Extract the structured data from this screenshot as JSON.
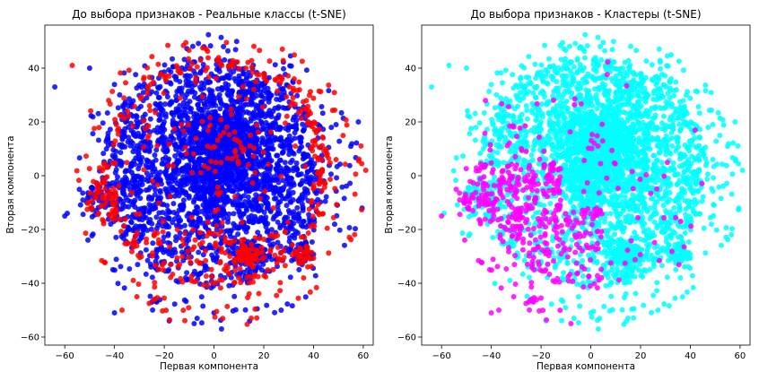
{
  "chart_data": [
    {
      "type": "scatter",
      "title": "До выбора признаков - Реальные классы (t-SNE)",
      "xlabel": "Первая компонента",
      "ylabel": "Вторая компонента",
      "xlim": [
        -68,
        64
      ],
      "ylim": [
        -63,
        56
      ],
      "xticks": [
        -60,
        -40,
        -20,
        0,
        20,
        40,
        60
      ],
      "yticks": [
        -60,
        -40,
        -20,
        0,
        20,
        40
      ],
      "grid": false,
      "colors": {
        "class_0": "#0000ff",
        "class_1": "#ff0000"
      },
      "outliers": [
        [
          -64,
          33
        ],
        [
          -57,
          41
        ],
        [
          -50,
          40
        ],
        [
          -59,
          -14
        ],
        [
          -60,
          -15
        ],
        [
          58,
          20
        ],
        [
          61,
          2
        ],
        [
          -40,
          -51
        ],
        [
          -37,
          -50
        ],
        [
          -18,
          -54
        ],
        [
          -8,
          -55
        ],
        [
          0,
          -51
        ],
        [
          3,
          -57
        ],
        [
          15,
          -53
        ],
        [
          -25,
          -47
        ],
        [
          -31,
          -45
        ],
        [
          27,
          -50
        ],
        [
          36,
          -38
        ]
      ]
    },
    {
      "type": "scatter",
      "title": "До выбора признаков - Кластеры (t-SNE)",
      "xlabel": "Первая компонента",
      "ylabel": "Вторая компонента",
      "xlim": [
        -68,
        64
      ],
      "ylim": [
        -63,
        56
      ],
      "xticks": [
        -60,
        -40,
        -20,
        0,
        20,
        40,
        60
      ],
      "yticks": [
        -60,
        -40,
        -20,
        0,
        20,
        40
      ],
      "grid": false,
      "colors": {
        "cluster_0": "#00ffff",
        "cluster_1": "#ff00ff"
      },
      "outliers": [
        [
          -64,
          33
        ],
        [
          -57,
          41
        ],
        [
          -50,
          40
        ],
        [
          -59,
          -14
        ],
        [
          -60,
          -15
        ],
        [
          58,
          20
        ],
        [
          61,
          2
        ],
        [
          -40,
          -51
        ],
        [
          -37,
          -50
        ],
        [
          -18,
          -54
        ],
        [
          -8,
          -55
        ],
        [
          0,
          -51
        ],
        [
          3,
          -57
        ],
        [
          15,
          -53
        ],
        [
          -25,
          -47
        ],
        [
          -31,
          -45
        ],
        [
          27,
          -50
        ],
        [
          36,
          -38
        ]
      ]
    }
  ]
}
